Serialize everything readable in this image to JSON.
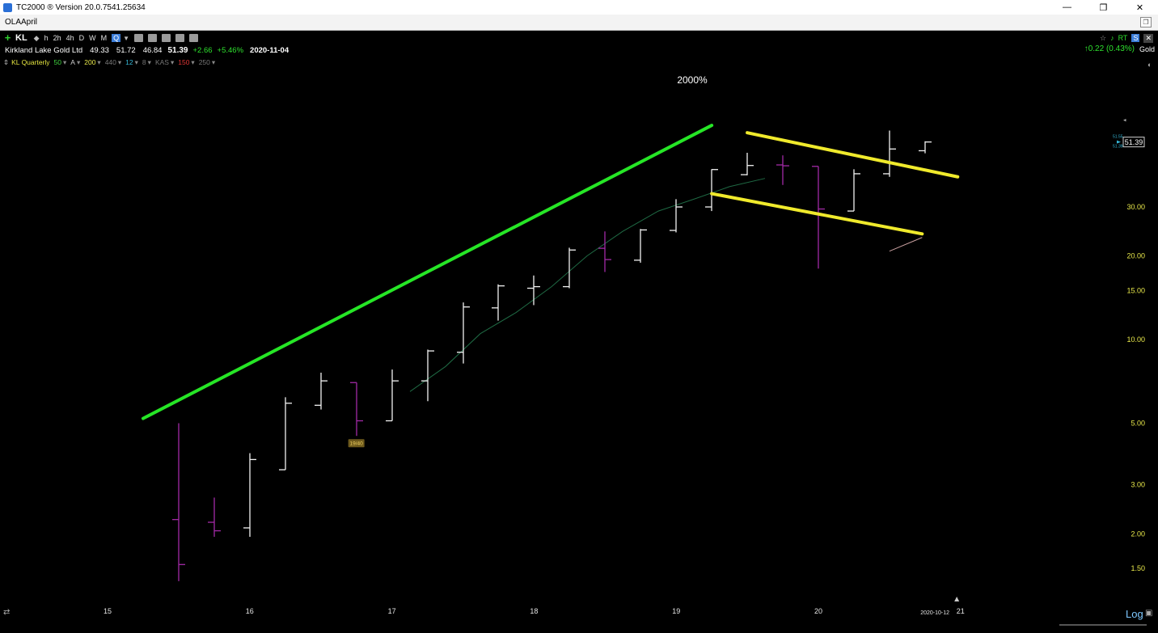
{
  "window": {
    "title": "TC2000 ® Version 20.0.7541.25634",
    "minimize": "—",
    "restore": "❐",
    "close": "✕"
  },
  "tabs": {
    "active": "OLAApril"
  },
  "toolbar": {
    "symbol": "KL",
    "timeframes": [
      "h",
      "2h",
      "4h",
      "D",
      "W",
      "M",
      "Q"
    ],
    "active_timeframe": "Q"
  },
  "quote": {
    "company": "Kirkland Lake Gold Ltd",
    "open": "49.33",
    "high": "51.72",
    "low": "46.84",
    "last": "51.39",
    "change": "+2.66",
    "change_pct": "+5.46%",
    "date": "2020-11-04",
    "right_change": "↑0.22 (0.43%)",
    "industry": "Gold"
  },
  "indicators": {
    "chart_name": "KL Quarterly",
    "items": [
      {
        "label": "50",
        "color": "#3fd43f"
      },
      {
        "label": "A",
        "color": "#cfcfcf"
      },
      {
        "label": "200",
        "color": "#e8e84a"
      },
      {
        "label": "440",
        "color": "#777777"
      },
      {
        "label": "12",
        "color": "#35b8d8"
      },
      {
        "label": "8",
        "color": "#777777"
      },
      {
        "label": "KAS",
        "color": "#777777"
      },
      {
        "label": "150",
        "color": "#e03535"
      },
      {
        "label": "250",
        "color": "#777777"
      }
    ]
  },
  "chart_data": {
    "type": "ohlc",
    "scale": "log",
    "annotation": "2000%",
    "price_label": "51.39",
    "price_tag_small_1": "51.55",
    "price_tag_small_2": "51.39",
    "bar_label": "19/40",
    "date_marker": "2020-10-12",
    "y_ticks": [
      "30.00",
      "20.00",
      "15.00",
      "10.00",
      "5.00",
      "3.00",
      "2.00",
      "1.50"
    ],
    "y_tick_values": [
      30,
      20,
      15,
      10,
      5,
      3,
      2,
      1.5
    ],
    "x_labels": [
      "15",
      "16",
      "17",
      "18",
      "19",
      "20",
      "21"
    ],
    "bars": [
      {
        "o": 2.25,
        "h": 5.0,
        "l": 1.35,
        "c": 1.55,
        "down": true
      },
      {
        "o": 2.2,
        "h": 2.7,
        "l": 1.95,
        "c": 2.05,
        "down": true
      },
      {
        "o": 2.1,
        "h": 3.9,
        "l": 1.95,
        "c": 3.7
      },
      {
        "o": 3.4,
        "h": 6.2,
        "l": 3.4,
        "c": 5.9
      },
      {
        "o": 5.8,
        "h": 7.6,
        "l": 5.6,
        "c": 7.1
      },
      {
        "o": 7.0,
        "h": 7.0,
        "l": 4.5,
        "c": 5.1,
        "down": true
      },
      {
        "o": 5.1,
        "h": 7.8,
        "l": 5.1,
        "c": 7.1
      },
      {
        "o": 7.1,
        "h": 9.2,
        "l": 6.0,
        "c": 9.1
      },
      {
        "o": 9.0,
        "h": 13.6,
        "l": 8.2,
        "c": 13.1
      },
      {
        "o": 13.0,
        "h": 15.8,
        "l": 11.7,
        "c": 15.6
      },
      {
        "o": 15.3,
        "h": 17.0,
        "l": 13.3,
        "c": 15.5
      },
      {
        "o": 15.5,
        "h": 21.4,
        "l": 15.3,
        "c": 21.0
      },
      {
        "o": 21.3,
        "h": 24.5,
        "l": 17.5,
        "c": 19.4,
        "down": true
      },
      {
        "o": 19.3,
        "h": 25.0,
        "l": 18.9,
        "c": 24.8
      },
      {
        "o": 24.7,
        "h": 32.0,
        "l": 24.3,
        "c": 30.0
      },
      {
        "o": 30.0,
        "h": 41.0,
        "l": 29.0,
        "c": 40.9
      },
      {
        "o": 39.2,
        "h": 47.0,
        "l": 39.0,
        "c": 42.3
      },
      {
        "o": 42.5,
        "h": 46.0,
        "l": 36.0,
        "c": 42.2,
        "down": true
      },
      {
        "o": 42.0,
        "h": 42.0,
        "l": 18.0,
        "c": 29.5,
        "down": true
      },
      {
        "o": 29.0,
        "h": 41.0,
        "l": 29.0,
        "c": 39.5
      },
      {
        "o": 39.5,
        "h": 56.5,
        "l": 38.5,
        "c": 48.5
      },
      {
        "o": 47.8,
        "h": 51.7,
        "l": 46.8,
        "c": 51.4
      }
    ],
    "ma": [
      6.5,
      8.0,
      10.5,
      12.5,
      15.5,
      20.0,
      24.5,
      29.0,
      32.0,
      35.5,
      38.0
    ],
    "trendlines": [
      {
        "color": "#26e626",
        "from": [
          15.25,
          5.2
        ],
        "to": [
          19.25,
          59.0
        ]
      },
      {
        "color": "#f0ea2c",
        "from": [
          19.5,
          55.5
        ],
        "to": [
          20.98,
          38.5
        ]
      },
      {
        "color": "#f0ea2c",
        "from": [
          19.25,
          33.5
        ],
        "to": [
          20.73,
          24.0
        ]
      }
    ]
  }
}
